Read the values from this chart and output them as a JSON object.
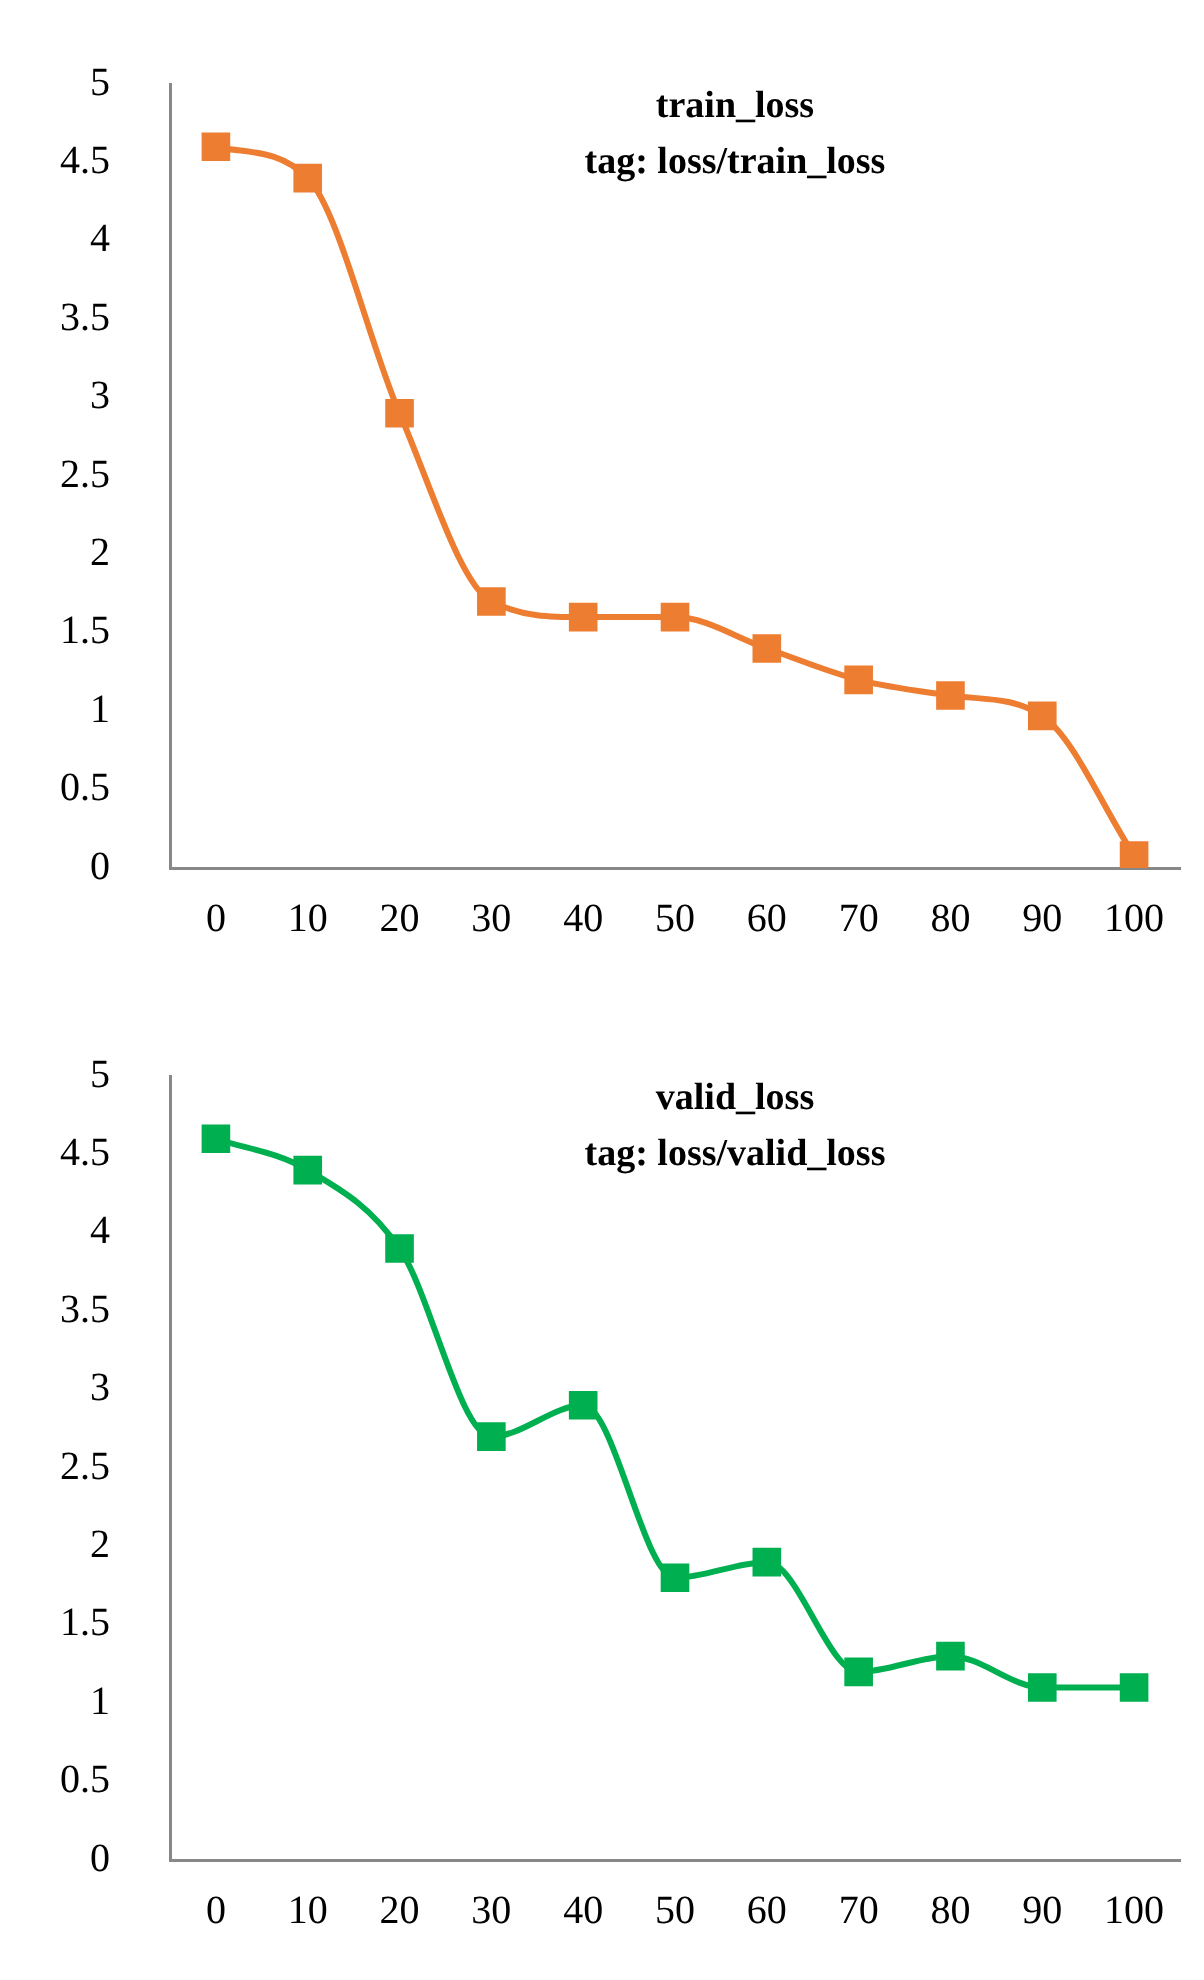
{
  "chart_data": [
    {
      "type": "line",
      "title": "train_loss",
      "subtitle": "tag: loss/train_loss",
      "categories": [
        "0",
        "10",
        "20",
        "30",
        "40",
        "50",
        "60",
        "70",
        "80",
        "90",
        "100"
      ],
      "series": [
        {
          "color": "#ed7d31",
          "values": [
            4.6,
            4.4,
            2.9,
            1.7,
            1.6,
            1.6,
            1.4,
            1.2,
            1.1,
            0.97,
            0.08
          ]
        }
      ],
      "ylim": [
        0,
        5
      ],
      "yticks": [
        0,
        0.5,
        1,
        1.5,
        2,
        2.5,
        3,
        3.5,
        4,
        4.5,
        5
      ],
      "grid": false,
      "legend": false,
      "marker": "square",
      "line_style": "solid"
    },
    {
      "type": "line",
      "title": "valid_loss",
      "subtitle": "tag: loss/valid_loss",
      "categories": [
        "0",
        "10",
        "20",
        "30",
        "40",
        "50",
        "60",
        "70",
        "80",
        "90",
        "100"
      ],
      "series": [
        {
          "color": "#00b050",
          "values": [
            4.6,
            4.4,
            3.9,
            2.7,
            2.9,
            1.8,
            1.9,
            1.2,
            1.3,
            1.1,
            1.1
          ]
        }
      ],
      "ylim": [
        0,
        5
      ],
      "yticks": [
        0,
        0.5,
        1,
        1.5,
        2,
        2.5,
        3,
        3.5,
        4,
        4.5,
        5
      ],
      "grid": false,
      "legend": false,
      "marker": "square",
      "line_style": "solid"
    }
  ]
}
